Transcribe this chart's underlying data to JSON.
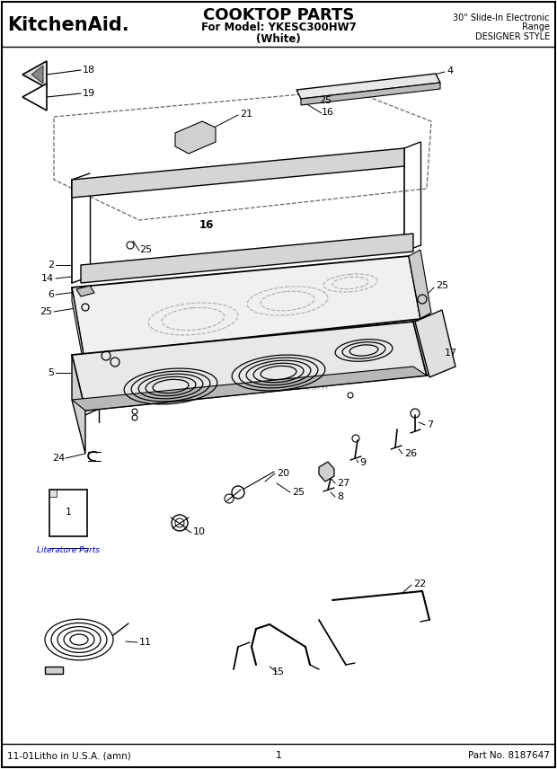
{
  "title": "COOKTOP PARTS",
  "subtitle": "For Model: YKESC300HW7",
  "subtitle2": "(White)",
  "brand": "KitchenAid.",
  "right_text1": "30\" Slide-In Electronic",
  "right_text2": "Range",
  "right_text3": "DESIGNER STYLE",
  "footer_left": "11-01Litho in U.S.A. (amn)",
  "footer_center": "1",
  "footer_right": "Part No. 8187647",
  "watermark": "eReplacementParts.com",
  "bg_color": "#ffffff",
  "line_color": "#000000",
  "dashed_color": "#666666",
  "light_gray": "#cccccc"
}
